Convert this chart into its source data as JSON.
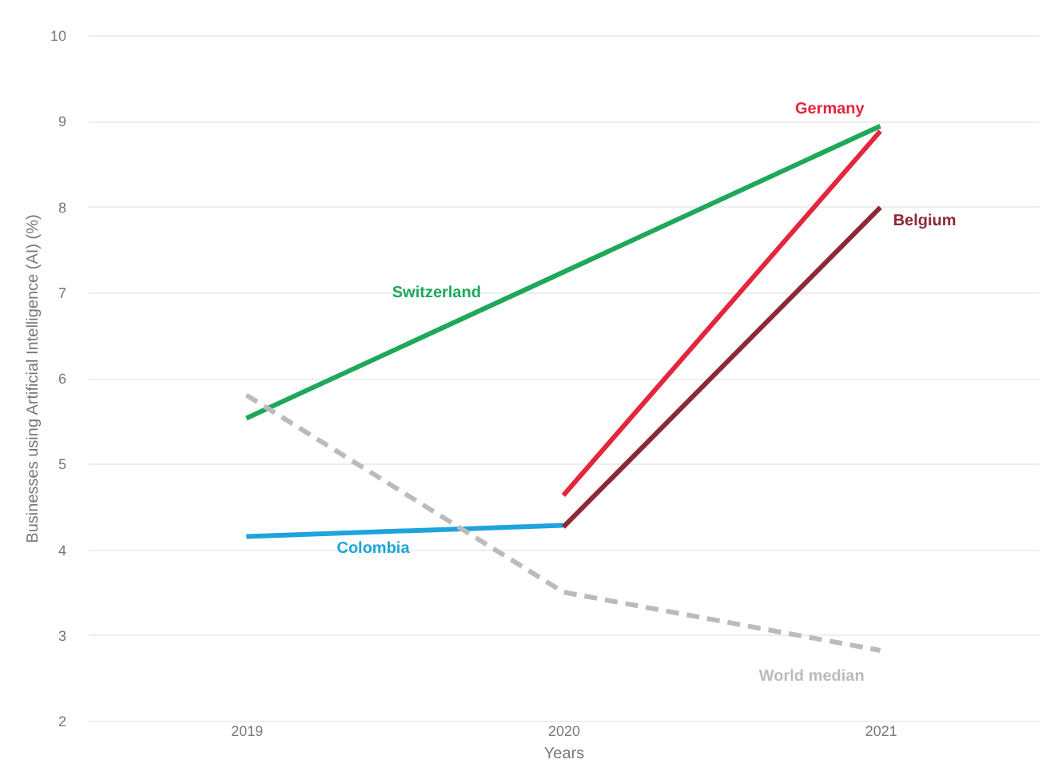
{
  "chart_data": {
    "type": "line",
    "xlabel": "Years",
    "ylabel": "Businesses using Artificial Intelligence (AI) (%)",
    "x": [
      2019,
      2020,
      2021
    ],
    "xlim": [
      2018.5,
      2021.5
    ],
    "xticks": [
      2019,
      2020,
      2021
    ],
    "ylim": [
      2,
      10
    ],
    "yticks": [
      2,
      3,
      4,
      5,
      6,
      7,
      8,
      9,
      10
    ],
    "grid": "y",
    "marker": "none",
    "series": [
      {
        "name": "Switzerland",
        "color": "#1fa85a",
        "values": [
          5.53,
          null,
          8.94
        ]
      },
      {
        "name": "Colombia",
        "color": "#1fa3dc",
        "values": [
          4.15,
          4.28,
          null
        ]
      },
      {
        "name": "Germany",
        "color": "#e3263c",
        "values": [
          null,
          4.63,
          8.88
        ]
      },
      {
        "name": "Belgium",
        "color": "#8b2a35",
        "values": [
          null,
          4.26,
          7.99
        ]
      },
      {
        "name": "World median",
        "color": "#bbbbbb",
        "line_style": "dashed",
        "values": [
          5.8,
          3.5,
          2.82
        ]
      }
    ]
  }
}
